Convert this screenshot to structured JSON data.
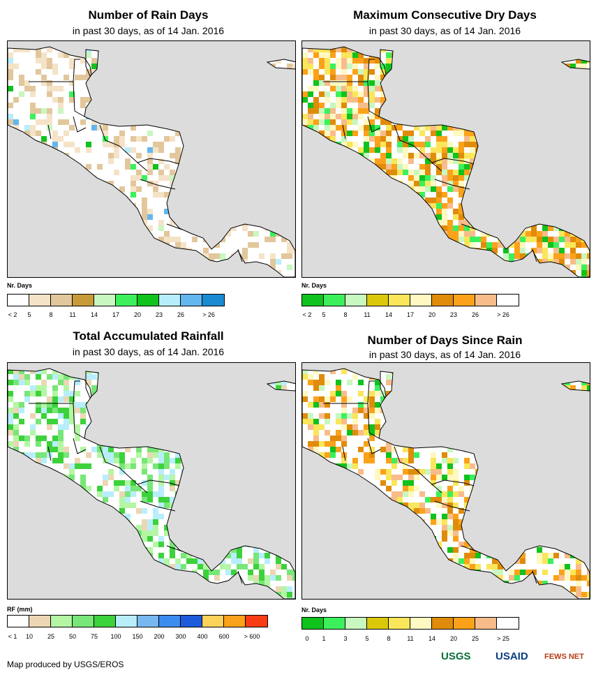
{
  "panels": [
    {
      "title": "Number of Rain Days",
      "subtitle": "in past 30 days, as of 14 Jan. 2016",
      "unit": "Nr. Days",
      "legend": {
        "colors": [
          "#ffffff",
          "#f5e3c8",
          "#e2c79c",
          "#c89b3a",
          "#c8f7c0",
          "#3cf05c",
          "#10c21c",
          "#b8eefc",
          "#64b6f0",
          "#1a8ad2"
        ],
        "labels": [
          "< 2",
          "5",
          "8",
          "11",
          "14",
          "17",
          "20",
          "23",
          "26",
          "> 26"
        ]
      }
    },
    {
      "title": "Maximum Consecutive Dry Days",
      "subtitle": "in past 30 days, as of 14 Jan. 2016",
      "unit": "Nr. Days",
      "legend": {
        "colors": [
          "#10c21c",
          "#3cf05c",
          "#c8f7c0",
          "#dcc80a",
          "#fae65a",
          "#fff8c0",
          "#e08c0a",
          "#fba21a",
          "#f8bc8a",
          "#ffffff"
        ],
        "labels": [
          "< 2",
          "5",
          "8",
          "11",
          "14",
          "17",
          "20",
          "23",
          "26",
          "> 26"
        ]
      }
    },
    {
      "title": "Total Accumulated Rainfall",
      "subtitle": "in past 30 days, as of 14 Jan. 2016",
      "unit": "RF (mm)",
      "legend": {
        "colors": [
          "#ffffff",
          "#ecd6b4",
          "#b4f6a4",
          "#78e678",
          "#3cd23c",
          "#b8eefc",
          "#78b8f0",
          "#3c8cf0",
          "#1e5adc",
          "#fbd25a",
          "#fba21a",
          "#fa3c14"
        ],
        "labels": [
          "< 1",
          "10",
          "25",
          "50",
          "75",
          "100",
          "150",
          "200",
          "300",
          "400",
          "600",
          "> 600"
        ]
      }
    },
    {
      "title": "Number of Days Since Rain",
      "subtitle": "in past 30 days, as of 14 Jan. 2016",
      "unit": "Nr. Days",
      "legend": {
        "colors": [
          "#10c21c",
          "#3cf05c",
          "#c8f7c0",
          "#dcc80a",
          "#fae65a",
          "#fff8c0",
          "#e08c0a",
          "#fba21a",
          "#f8bc8a",
          "#ffffff"
        ],
        "labels": [
          "0",
          "1",
          "3",
          "5",
          "8",
          "11",
          "14",
          "20",
          "25",
          "> 25"
        ]
      }
    }
  ],
  "footer": "Map produced by USGS/EROS",
  "logos": {
    "usgs": "USGS",
    "usaid": "USAID",
    "fewsnet": "FEWS NET"
  }
}
